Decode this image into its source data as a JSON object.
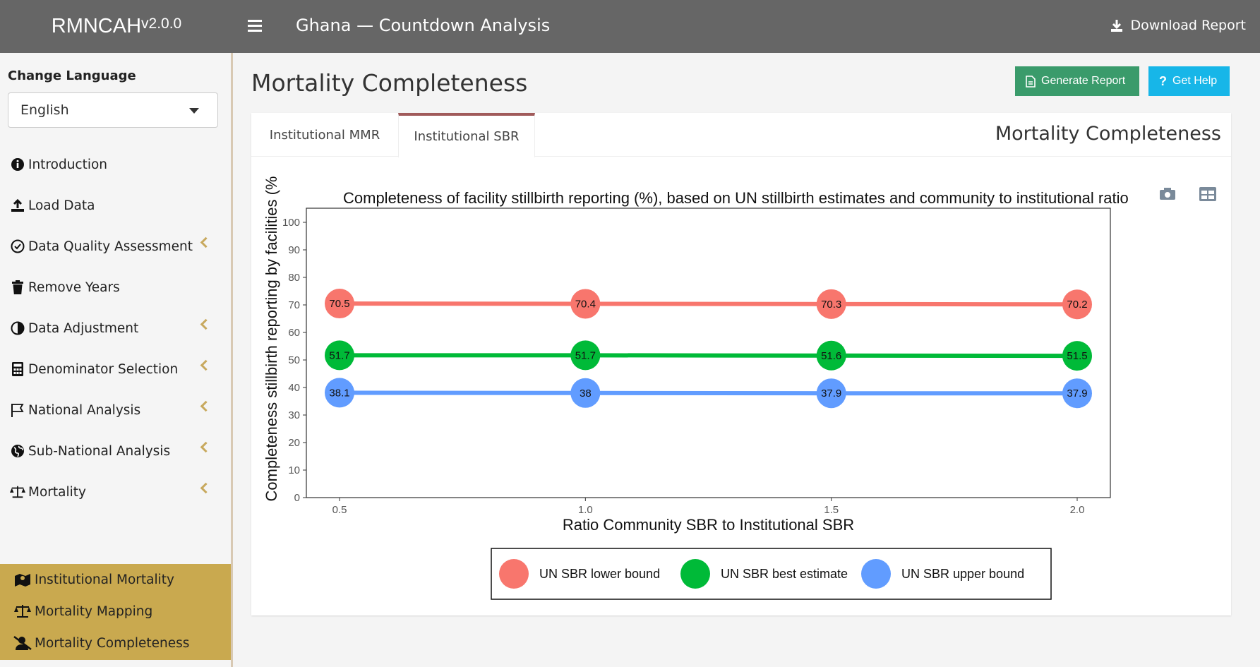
{
  "header": {
    "brand": "RMNCAH",
    "version": "v2.0.0",
    "title": "Ghana — Countdown Analysis",
    "download_label": "Download Report"
  },
  "sidebar": {
    "language_label": "Change Language",
    "language_value": "English",
    "items": [
      {
        "label": "Introduction",
        "icon": "info-circle-icon",
        "has_children": false
      },
      {
        "label": "Load Data",
        "icon": "upload-icon",
        "has_children": false
      },
      {
        "label": "Data Quality Assessment",
        "icon": "check-circle-icon",
        "has_children": true
      },
      {
        "label": "Remove Years",
        "icon": "trash-icon",
        "has_children": false
      },
      {
        "label": "Data Adjustment",
        "icon": "adjust-icon",
        "has_children": true
      },
      {
        "label": "Denominator Selection",
        "icon": "calculator-icon",
        "has_children": true
      },
      {
        "label": "National Analysis",
        "icon": "flag-icon",
        "has_children": true
      },
      {
        "label": "Sub-National Analysis",
        "icon": "globe-icon",
        "has_children": true
      },
      {
        "label": "Mortality",
        "icon": "scale-icon",
        "has_children": true
      }
    ],
    "subitems": [
      {
        "label": "Institutional Mortality",
        "icon": "map-marker-icon"
      },
      {
        "label": "Mortality Mapping",
        "icon": "scale-icon"
      },
      {
        "label": "Mortality Completeness",
        "icon": "user-slash-icon"
      }
    ]
  },
  "page": {
    "title": "Mortality Completeness",
    "generate_label": "Generate Report",
    "help_label": "Get Help",
    "card_title": "Mortality Completeness",
    "tabs": [
      {
        "label": "Institutional MMR",
        "active": false
      },
      {
        "label": "Institutional SBR",
        "active": true
      }
    ]
  },
  "colors": {
    "lower": "#f8766d",
    "best": "#00ba38",
    "upper": "#619cff"
  },
  "chart_data": {
    "type": "line",
    "title": "Completeness of facility stillbirth reporting (%), based on UN stillbirth estimates and community to institutional ratio",
    "xlabel": "Ratio Community SBR to Institutional SBR",
    "ylabel": "Completeness stillbirth reporting by facilities (%",
    "x": [
      0.5,
      1.0,
      1.5,
      2.0
    ],
    "x_tick_labels": [
      "0.5",
      "1.0",
      "1.5",
      "2.0"
    ],
    "xlim": [
      0.5,
      2.0
    ],
    "ylim": [
      0,
      100
    ],
    "y_ticks": [
      0,
      10,
      20,
      30,
      40,
      50,
      60,
      70,
      80,
      90,
      100
    ],
    "legend_position": "bottom",
    "series": [
      {
        "name": "UN SBR lower bound",
        "color_key": "lower",
        "values": [
          70.5,
          70.4,
          70.3,
          70.2
        ],
        "labels": [
          "70.5",
          "70.4",
          "70.3",
          "70.2"
        ]
      },
      {
        "name": "UN SBR best estimate",
        "color_key": "best",
        "values": [
          51.7,
          51.7,
          51.6,
          51.5
        ],
        "labels": [
          "51.7",
          "51.7",
          "51.6",
          "51.5"
        ]
      },
      {
        "name": "UN SBR upper bound",
        "color_key": "upper",
        "values": [
          38.1,
          38.0,
          37.9,
          37.9
        ],
        "labels": [
          "38.1",
          "38",
          "37.9",
          "37.9"
        ]
      }
    ]
  }
}
